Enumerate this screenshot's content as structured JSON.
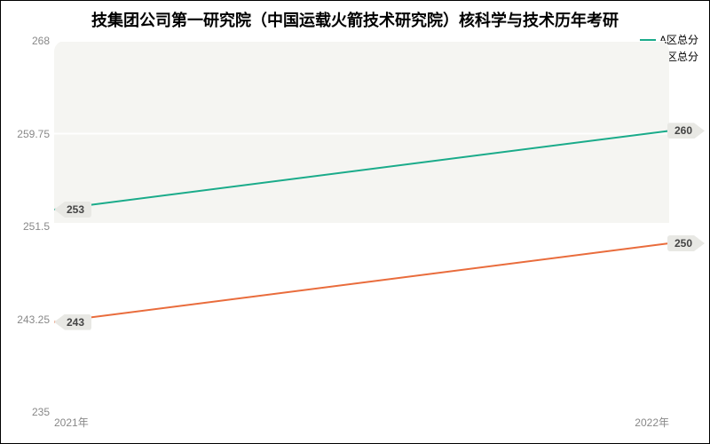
{
  "chart": {
    "type": "line",
    "title": "技集团公司第一研究院（中国运载火箭技术研究院）核科学与技术历年考研",
    "title_fontsize": 18,
    "background_color": "#ffffff",
    "plot_shade_color": "#f5f5f2",
    "series": [
      {
        "name": "A区总分",
        "color": "#1aab8a",
        "values": [
          253,
          260
        ]
      },
      {
        "name": "B区总分",
        "color": "#e96c3c",
        "values": [
          243,
          250
        ]
      }
    ],
    "x": {
      "categories": [
        "2021年",
        "2022年"
      ]
    },
    "y": {
      "min": 235,
      "max": 268,
      "ticks": [
        235,
        243.25,
        251.5,
        259.75,
        268
      ],
      "gridline_color": "#ffffff"
    },
    "line_width": 2,
    "label_fontsize": 12,
    "badge_bg": "#e8e8e4",
    "badge_text": "#444444"
  }
}
